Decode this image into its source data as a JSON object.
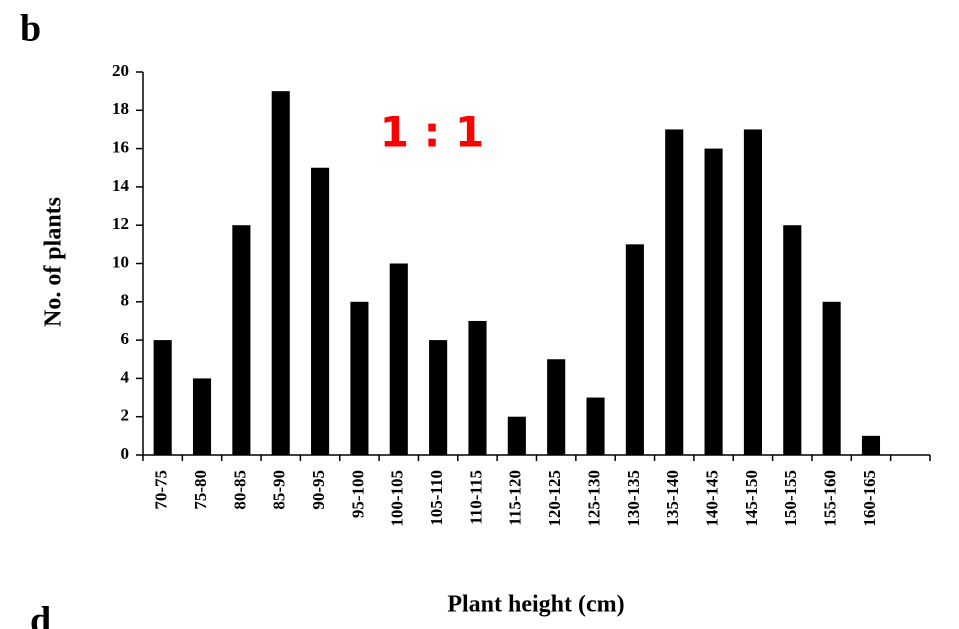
{
  "panel_labels": [
    "b",
    "d"
  ],
  "chart_data": {
    "type": "bar",
    "annotation": "1 : 1",
    "annotation_color": "#ff0000",
    "xlabel": "Plant height (cm)",
    "ylabel": "No. of plants",
    "categories": [
      "70-75",
      "75-80",
      "80-85",
      "85-90",
      "90-95",
      "95-100",
      "100-105",
      "105-110",
      "110-115",
      "115-120",
      "120-125",
      "125-130",
      "130-135",
      "135-140",
      "140-145",
      "145-150",
      "150-155",
      "155-160",
      "160-165"
    ],
    "values": [
      6,
      4,
      12,
      19,
      15,
      8,
      10,
      6,
      7,
      2,
      5,
      3,
      11,
      17,
      16,
      17,
      12,
      8,
      1
    ],
    "color": "#000000",
    "ylim": [
      0,
      20
    ],
    "yticks": [
      0,
      2,
      4,
      6,
      8,
      10,
      12,
      14,
      16,
      18,
      20
    ],
    "grid": false
  }
}
